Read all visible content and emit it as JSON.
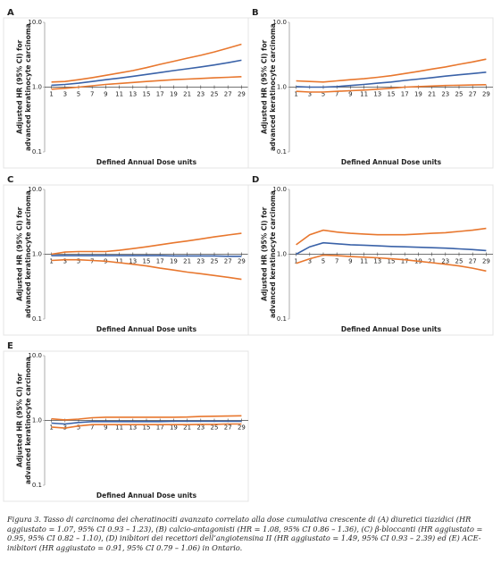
{
  "chart_data": [
    {
      "type": "line",
      "panel": "A",
      "yscale": "log",
      "ylim": [
        0.1,
        10
      ],
      "yticks": [
        0.1,
        {
          "value": 1,
          "label": "1.0"
        },
        {
          "value": 10,
          "label": "10.0"
        }
      ],
      "xlim": [
        0,
        30
      ],
      "xticks": [
        1,
        3,
        5,
        7,
        9,
        11,
        13,
        15,
        17,
        19,
        21,
        23,
        25,
        27,
        29
      ],
      "x_label": "Defined Annual Dose units",
      "y_label": "Adjusted HR (95% CI) for advanced keratinocyte carcinoma",
      "x": [
        1,
        3,
        5,
        7,
        9,
        11,
        13,
        15,
        17,
        19,
        21,
        23,
        25,
        27,
        29
      ],
      "series": [
        {
          "color": "#e8772e",
          "values": [
            1.2,
            1.22,
            1.3,
            1.4,
            1.52,
            1.65,
            1.8,
            2.0,
            2.25,
            2.5,
            2.8,
            3.1,
            3.5,
            4.0,
            4.6
          ]
        },
        {
          "color": "#3a62a8",
          "values": [
            1.07,
            1.1,
            1.15,
            1.22,
            1.3,
            1.38,
            1.47,
            1.57,
            1.68,
            1.8,
            1.92,
            2.05,
            2.2,
            2.38,
            2.6
          ]
        },
        {
          "color": "#e8772e",
          "values": [
            0.93,
            0.96,
            1.0,
            1.05,
            1.1,
            1.14,
            1.18,
            1.22,
            1.26,
            1.3,
            1.33,
            1.36,
            1.39,
            1.42,
            1.45
          ]
        }
      ]
    },
    {
      "type": "line",
      "panel": "B",
      "yscale": "log",
      "ylim": [
        0.1,
        10
      ],
      "yticks": [
        0.1,
        {
          "value": 1,
          "label": "1.0"
        },
        {
          "value": 10,
          "label": "10.0"
        }
      ],
      "xlim": [
        0,
        30
      ],
      "xticks": [
        1,
        3,
        5,
        7,
        9,
        11,
        13,
        15,
        17,
        19,
        21,
        23,
        25,
        27,
        29
      ],
      "x_label": "Defined Annual Dose units",
      "y_label": "Adjusted HR (95% CI) for advanced keratinocyte carcinoma",
      "x": [
        1,
        3,
        5,
        7,
        9,
        11,
        13,
        15,
        17,
        19,
        21,
        23,
        25,
        27,
        29
      ],
      "series": [
        {
          "color": "#e8772e",
          "values": [
            1.25,
            1.22,
            1.2,
            1.25,
            1.3,
            1.35,
            1.42,
            1.5,
            1.62,
            1.75,
            1.9,
            2.05,
            2.25,
            2.45,
            2.7
          ]
        },
        {
          "color": "#3a62a8",
          "values": [
            1.02,
            1.0,
            1.0,
            1.02,
            1.06,
            1.1,
            1.15,
            1.2,
            1.27,
            1.33,
            1.4,
            1.48,
            1.55,
            1.62,
            1.7
          ]
        },
        {
          "color": "#e8772e",
          "values": [
            0.86,
            0.84,
            0.84,
            0.86,
            0.88,
            0.9,
            0.93,
            0.96,
            1.0,
            1.02,
            1.04,
            1.06,
            1.07,
            1.08,
            1.09
          ]
        }
      ]
    },
    {
      "type": "line",
      "panel": "C",
      "yscale": "log",
      "ylim": [
        0.1,
        10
      ],
      "yticks": [
        0.1,
        {
          "value": 1,
          "label": "1.0"
        },
        {
          "value": 10,
          "label": "10.0"
        }
      ],
      "xlim": [
        0,
        30
      ],
      "xticks": [
        1,
        3,
        5,
        7,
        9,
        11,
        13,
        15,
        17,
        19,
        21,
        23,
        25,
        27,
        29
      ],
      "x_label": "Defined Annual Dose units",
      "y_label": "Adjusted HR (95% CI) for advanced keratinocyte carcinoma",
      "x": [
        1,
        3,
        5,
        7,
        9,
        11,
        13,
        15,
        17,
        19,
        21,
        23,
        25,
        27,
        29
      ],
      "series": [
        {
          "color": "#e8772e",
          "values": [
            1.0,
            1.08,
            1.1,
            1.1,
            1.1,
            1.15,
            1.22,
            1.3,
            1.4,
            1.5,
            1.6,
            1.72,
            1.85,
            1.98,
            2.1
          ]
        },
        {
          "color": "#3a62a8",
          "values": [
            0.95,
            0.95,
            0.95,
            0.95,
            0.95,
            0.95,
            0.95,
            0.95,
            0.95,
            0.94,
            0.94,
            0.94,
            0.94,
            0.93,
            0.93
          ]
        },
        {
          "color": "#e8772e",
          "values": [
            0.8,
            0.82,
            0.82,
            0.8,
            0.78,
            0.74,
            0.7,
            0.66,
            0.61,
            0.57,
            0.53,
            0.5,
            0.47,
            0.44,
            0.41
          ]
        }
      ]
    },
    {
      "type": "line",
      "panel": "D",
      "yscale": "log",
      "ylim": [
        0.1,
        10
      ],
      "yticks": [
        0.1,
        {
          "value": 1,
          "label": "1.0"
        },
        {
          "value": 10,
          "label": "10.0"
        }
      ],
      "xlim": [
        0,
        30
      ],
      "xticks": [
        1,
        3,
        5,
        7,
        9,
        11,
        13,
        15,
        17,
        19,
        21,
        23,
        25,
        27,
        29
      ],
      "x_label": "Defined Annual Dose units",
      "y_label": "Adjusted HR (95% CI) for advanced keratinocyte carcinoma",
      "x": [
        1,
        3,
        5,
        7,
        9,
        11,
        13,
        15,
        17,
        19,
        21,
        23,
        25,
        27,
        29
      ],
      "series": [
        {
          "color": "#e8772e",
          "values": [
            1.4,
            2.0,
            2.35,
            2.2,
            2.1,
            2.05,
            2.0,
            2.0,
            2.0,
            2.05,
            2.1,
            2.15,
            2.25,
            2.35,
            2.5
          ]
        },
        {
          "color": "#3a62a8",
          "values": [
            1.0,
            1.3,
            1.5,
            1.45,
            1.4,
            1.38,
            1.35,
            1.32,
            1.3,
            1.28,
            1.26,
            1.24,
            1.21,
            1.18,
            1.14
          ]
        },
        {
          "color": "#e8772e",
          "values": [
            0.72,
            0.85,
            0.97,
            0.95,
            0.92,
            0.9,
            0.88,
            0.85,
            0.82,
            0.78,
            0.74,
            0.7,
            0.66,
            0.61,
            0.55
          ]
        }
      ]
    },
    {
      "type": "line",
      "panel": "E",
      "yscale": "log",
      "ylim": [
        0.1,
        10
      ],
      "yticks": [
        0.1,
        {
          "value": 1,
          "label": "1.0"
        },
        {
          "value": 10,
          "label": "10.0"
        }
      ],
      "xlim": [
        0,
        30
      ],
      "xticks": [
        1,
        3,
        5,
        7,
        9,
        11,
        13,
        15,
        17,
        19,
        21,
        23,
        25,
        27,
        29
      ],
      "x_label": "Defined Annual Dose units",
      "y_label": "Adjusted HR (95% CI) for advanced keratinocyte carcinoma",
      "x": [
        1,
        3,
        5,
        7,
        9,
        11,
        13,
        15,
        17,
        19,
        21,
        23,
        25,
        27,
        29
      ],
      "series": [
        {
          "color": "#e8772e",
          "values": [
            1.06,
            1.02,
            1.05,
            1.1,
            1.12,
            1.12,
            1.12,
            1.12,
            1.12,
            1.12,
            1.13,
            1.15,
            1.16,
            1.17,
            1.18
          ]
        },
        {
          "color": "#3a62a8",
          "values": [
            0.91,
            0.88,
            0.93,
            0.96,
            0.96,
            0.96,
            0.96,
            0.96,
            0.96,
            0.97,
            0.97,
            0.97,
            0.97,
            0.97,
            0.97
          ]
        },
        {
          "color": "#e8772e",
          "values": [
            0.79,
            0.76,
            0.82,
            0.86,
            0.86,
            0.86,
            0.86,
            0.86,
            0.86,
            0.86,
            0.86,
            0.87,
            0.87,
            0.88,
            0.88
          ]
        }
      ]
    }
  ],
  "caption": "Figura 3. Tasso di carcinoma dei cheratinociti avanzato correlato alla dose cumulativa crescente di (A) diuretici tiazidici (HR aggiustato = 1.07, 95% CI 0.93 – 1.23), (B) calcio-antagonisti (HR = 1.08, 95% CI 0.86 – 1.36), (C) β-bloccanti (HR aggiustato = 0.95, 95% CI 0.82 – 1.10), (D) inibitori dei recettori dell’angiotensina II (HR aggiustato = 1.49, 95% CI 0.93 – 2.39) ed (E) ACE-inibitori (HR aggiustato = 0.91, 95% CI 0.79 – 1.06) in Ontario."
}
